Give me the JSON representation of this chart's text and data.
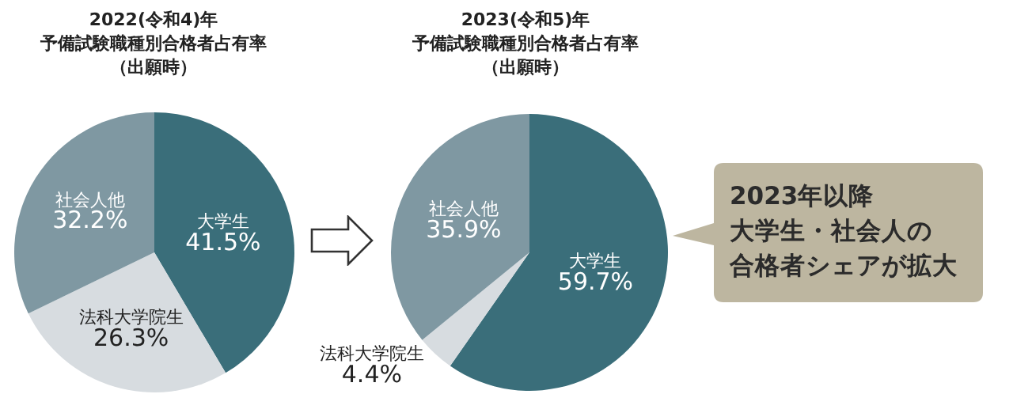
{
  "chart_data": [
    {
      "type": "pie",
      "title": "2022(令和4)年",
      "subtitle": "予備試験職種別合格者占有率（出願時）",
      "categories": [
        "大学生",
        "法科大学院生",
        "社会人他"
      ],
      "values": [
        41.5,
        26.3,
        32.2
      ],
      "value_labels": [
        "41.5%",
        "26.3%",
        "32.2%"
      ],
      "colors": [
        "#3a6e7a",
        "#d7dce0",
        "#7f98a2"
      ]
    },
    {
      "type": "pie",
      "title": "2023(令和5)年",
      "subtitle": "予備試験職種別合格者占有率（出願時）",
      "categories": [
        "大学生",
        "法科大学院生",
        "社会人他"
      ],
      "values": [
        59.7,
        4.4,
        35.9
      ],
      "value_labels": [
        "59.7%",
        "4.4%",
        "35.9%"
      ],
      "colors": [
        "#3a6e7a",
        "#d7dce0",
        "#7f98a2"
      ]
    },
    {
      "type": "other",
      "annotations": [
        "2023年以降",
        "大学生・社会人の",
        "合格者シェアが拡大"
      ]
    }
  ]
}
